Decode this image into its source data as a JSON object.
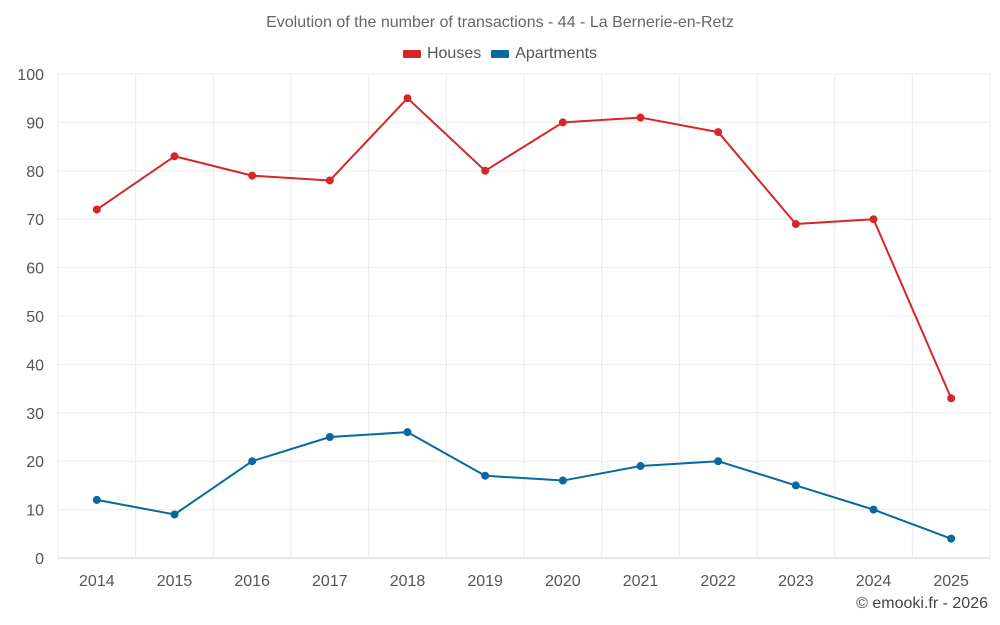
{
  "chart_data": {
    "type": "line",
    "title": "Evolution of the number of transactions - 44 - La Bernerie-en-Retz",
    "categories": [
      "2014",
      "2015",
      "2016",
      "2017",
      "2018",
      "2019",
      "2020",
      "2021",
      "2022",
      "2023",
      "2024",
      "2025"
    ],
    "series": [
      {
        "name": "Houses",
        "color": "#d62728",
        "values": [
          72,
          83,
          79,
          78,
          95,
          80,
          90,
          91,
          88,
          69,
          70,
          33
        ]
      },
      {
        "name": "Apartments",
        "color": "#0868a0",
        "values": [
          12,
          9,
          20,
          25,
          26,
          17,
          16,
          19,
          20,
          15,
          10,
          4
        ]
      }
    ],
    "y_ticks": [
      "0",
      "10",
      "20",
      "30",
      "40",
      "50",
      "60",
      "70",
      "80",
      "90",
      "100"
    ],
    "ylim": [
      0,
      100
    ],
    "xlabel": "",
    "ylabel": "",
    "grid": true,
    "legend_position": "top-center"
  },
  "credit": "© emooki.fr - 2026"
}
